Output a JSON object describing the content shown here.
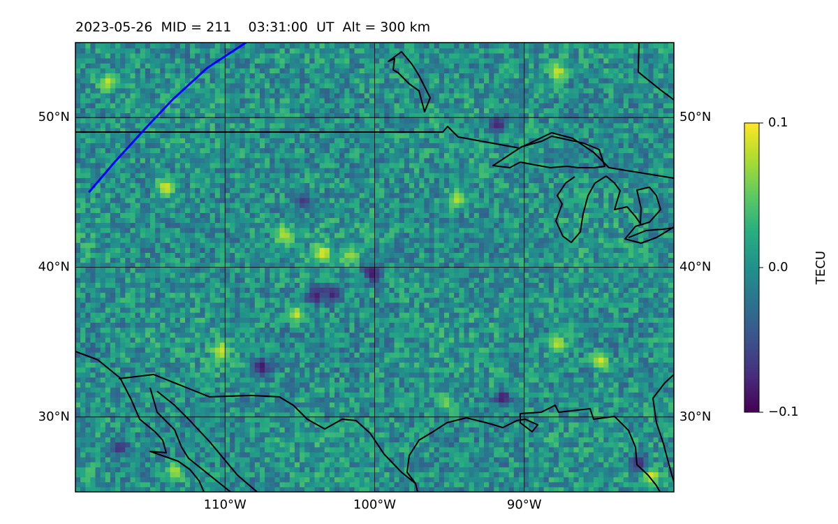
{
  "title": "2023-05-26  MID = 211    03:31:00  UT  Alt = 300 km",
  "map": {
    "extent": {
      "lon_min": -120,
      "lon_max": -80,
      "lat_min": 25,
      "lat_max": 55
    },
    "lat_gridlines": [
      30,
      40,
      50
    ],
    "lon_gridlines": [
      -110,
      -100,
      -90
    ],
    "lat_labels": [
      "30°N",
      "40°N",
      "50°N"
    ],
    "lon_labels": [
      "110°W",
      "100°W",
      "90°W"
    ],
    "track_color": "#0000ff",
    "track": [
      [
        -119.1,
        45.0
      ],
      [
        -117.4,
        47.0
      ],
      [
        -115.2,
        49.4
      ],
      [
        -113.5,
        51.2
      ],
      [
        -111.2,
        53.3
      ],
      [
        -108.6,
        55.0
      ]
    ]
  },
  "colorbar": {
    "label": "TECU",
    "vmin": -0.1,
    "vmax": 0.1,
    "ticks": [
      {
        "value": 0.1,
        "label": "0.1"
      },
      {
        "value": 0.0,
        "label": "0.0"
      },
      {
        "value": -0.1,
        "label": "−0.1"
      }
    ],
    "colormap": "viridis"
  },
  "hotspots": [
    {
      "lon": -118.0,
      "lat": 52.2,
      "v": 0.085
    },
    {
      "lon": -114.1,
      "lat": 45.2,
      "v": 0.09
    },
    {
      "lon": -106.2,
      "lat": 42.0,
      "v": 0.08
    },
    {
      "lon": -103.6,
      "lat": 40.8,
      "v": 0.095
    },
    {
      "lon": -101.8,
      "lat": 40.6,
      "v": 0.07
    },
    {
      "lon": -105.4,
      "lat": 36.7,
      "v": 0.085
    },
    {
      "lon": -104.1,
      "lat": 38.0,
      "v": -0.085
    },
    {
      "lon": -103.0,
      "lat": 38.0,
      "v": -0.08
    },
    {
      "lon": -100.3,
      "lat": 39.5,
      "v": -0.09
    },
    {
      "lon": -94.6,
      "lat": 44.4,
      "v": 0.08
    },
    {
      "lon": -91.9,
      "lat": 49.4,
      "v": -0.085
    },
    {
      "lon": -87.9,
      "lat": 52.9,
      "v": 0.085
    },
    {
      "lon": -91.6,
      "lat": 31.1,
      "v": -0.085
    },
    {
      "lon": -87.9,
      "lat": 34.7,
      "v": 0.08
    },
    {
      "lon": -85.1,
      "lat": 33.6,
      "v": 0.09
    },
    {
      "lon": -110.4,
      "lat": 34.3,
      "v": 0.085
    },
    {
      "lon": -107.7,
      "lat": 33.2,
      "v": -0.09
    },
    {
      "lon": -117.2,
      "lat": 27.8,
      "v": -0.075
    },
    {
      "lon": -113.5,
      "lat": 26.2,
      "v": 0.08
    },
    {
      "lon": -81.7,
      "lat": 25.9,
      "v": 0.09
    },
    {
      "lon": -82.5,
      "lat": 26.8,
      "v": -0.08
    },
    {
      "lon": -95.4,
      "lat": 30.8,
      "v": 0.06
    },
    {
      "lon": -104.9,
      "lat": 44.3,
      "v": -0.07
    }
  ]
}
